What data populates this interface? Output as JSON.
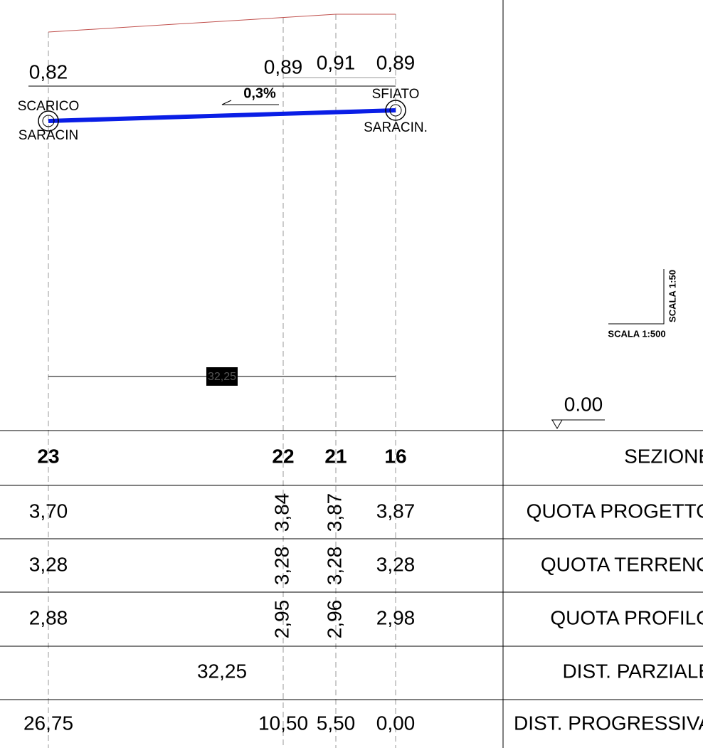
{
  "profile": {
    "elevations": [
      "0,82",
      "0,89",
      "0,91",
      "0,89"
    ],
    "slope": "0,3%",
    "labels": [
      {
        "top": "SCARICO",
        "bottom": "SARACIN"
      },
      {
        "top": "SFIATO",
        "bottom": "SARACIN."
      }
    ],
    "segment_length": "32,25"
  },
  "scale": {
    "horizontal": "SCALA 1:500",
    "vertical": "SCALA 1:50"
  },
  "datum": "0.00",
  "table": {
    "rows": [
      {
        "label": "SEZIONE",
        "values": [
          "23",
          "22",
          "21",
          "16"
        ]
      },
      {
        "label": "QUOTA PROGETTO",
        "values": [
          "3,70",
          "3,84",
          "3,87",
          "3,87"
        ]
      },
      {
        "label": "QUOTA TERRENO",
        "values": [
          "3,28",
          "3,28",
          "3,28",
          "3,28"
        ]
      },
      {
        "label": "QUOTA PROFILO",
        "values": [
          "2,88",
          "2,95",
          "2,96",
          "2,98"
        ]
      },
      {
        "label": "DIST. PARZIALE",
        "values": [
          "32,25"
        ]
      },
      {
        "label": "DIST. PROGRESSIVA",
        "values": [
          "26,75",
          "10,50",
          "5,50",
          "0,00"
        ]
      }
    ]
  }
}
